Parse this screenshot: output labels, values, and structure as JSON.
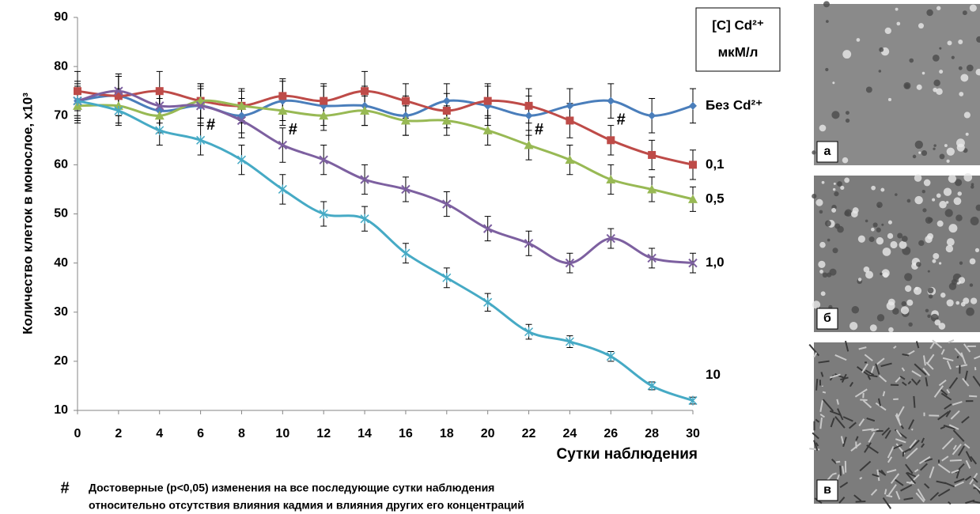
{
  "chart_data": {
    "type": "line",
    "y_label": "Количество клеток в монослое, x10³",
    "x_label": "Сутки наблюдения",
    "legend_title": "[C] Cd²⁺",
    "legend_unit": "мкМ/л",
    "x": [
      0,
      2,
      4,
      6,
      8,
      10,
      12,
      14,
      16,
      18,
      20,
      22,
      24,
      26,
      28,
      30
    ],
    "xlim": [
      0,
      30
    ],
    "xticks": [
      0,
      2,
      4,
      6,
      8,
      10,
      12,
      14,
      16,
      18,
      20,
      22,
      24,
      26,
      28,
      30
    ],
    "ylim": [
      10,
      90
    ],
    "yticks": [
      10,
      20,
      30,
      40,
      50,
      60,
      70,
      80,
      90
    ],
    "grid": false,
    "series": [
      {
        "name": "Без Cd²⁺",
        "color": "#4a7ebb",
        "marker": "diamond",
        "values": [
          73,
          74,
          71,
          72,
          70,
          73,
          72,
          72,
          70,
          73,
          72,
          70,
          72,
          73,
          70,
          72
        ],
        "errors": [
          4,
          4,
          4,
          4,
          3.5,
          4,
          4,
          4,
          4,
          3.5,
          4,
          4,
          3.5,
          3.5,
          3.5,
          3.5
        ]
      },
      {
        "name": "0,1",
        "color": "#be4b48",
        "marker": "square",
        "values": [
          75,
          74,
          75,
          73,
          72,
          74,
          73,
          75,
          73,
          71,
          73,
          72,
          69,
          65,
          62,
          60
        ],
        "errors": [
          4,
          4,
          4,
          3.5,
          3.5,
          3.5,
          3.5,
          4,
          3.5,
          3.5,
          3.5,
          3.5,
          3.5,
          3,
          3,
          3
        ]
      },
      {
        "name": "0,5",
        "color": "#98b954",
        "marker": "triangle",
        "values": [
          72,
          72,
          70,
          73,
          72,
          71,
          70,
          71,
          69,
          69,
          67,
          64,
          61,
          57,
          55,
          53
        ],
        "errors": [
          3.5,
          3.5,
          3.5,
          3.5,
          3,
          3,
          3,
          3,
          3,
          3,
          3,
          3,
          3,
          3,
          2.5,
          2.5
        ]
      },
      {
        "name": "1,0",
        "color": "#7d60a0",
        "marker": "x",
        "values": [
          73,
          75,
          72,
          72,
          69,
          64,
          61,
          57,
          55,
          52,
          47,
          44,
          40,
          45,
          41,
          40
        ],
        "errors": [
          3.5,
          3.5,
          3.5,
          3.5,
          3.5,
          3.5,
          3,
          3,
          2.5,
          2.5,
          2.5,
          2.5,
          2,
          2,
          2,
          2
        ]
      },
      {
        "name": "10",
        "color": "#46aac5",
        "marker": "star",
        "values": [
          73,
          71,
          67,
          65,
          61,
          55,
          50,
          49,
          42,
          37,
          32,
          26,
          24,
          21,
          15,
          12
        ],
        "errors": [
          3,
          3,
          3,
          3,
          3,
          3,
          2.5,
          2.5,
          2,
          2,
          1.8,
          1.5,
          1.2,
          1,
          0.8,
          0.7
        ]
      }
    ],
    "annotations": [
      {
        "text": "#",
        "x": 6.5,
        "y": 68
      },
      {
        "text": "#",
        "x": 10.5,
        "y": 67
      },
      {
        "text": "#",
        "x": 22.5,
        "y": 67
      },
      {
        "text": "#",
        "x": 26.5,
        "y": 69
      }
    ],
    "footnote": {
      "symbol": "#",
      "lines": [
        "Достоверные (p<0,05) изменения на все последующие сутки наблюдения",
        "относительно отсутствия влияния кадмия и влияния других его концентраций"
      ]
    },
    "panels": [
      "а",
      "б",
      "в"
    ]
  }
}
